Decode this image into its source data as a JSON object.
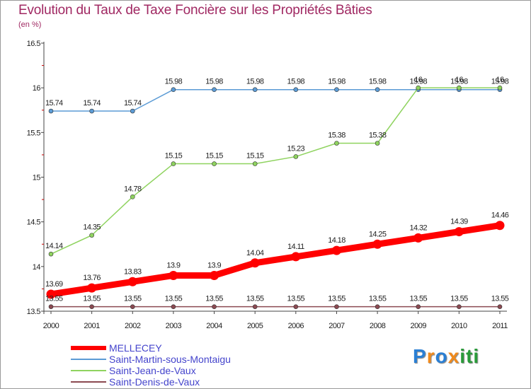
{
  "header": {
    "title": "Evolution du Taux de Taxe Foncière sur les Propriétés Bâties",
    "subtitle": "(en %)"
  },
  "logo": {
    "letters": [
      "P",
      "r",
      "o",
      "x",
      "i",
      "t",
      "i"
    ],
    "colors": [
      "#2a7fd4",
      "#f08a1c",
      "#2a7fd4",
      "#f08a1c",
      "#2a9a3a",
      "#2a9a3a",
      "#2a9a3a"
    ]
  },
  "chart_data": {
    "type": "line",
    "title": "Evolution du Taux de Taxe Foncière sur les Propriétés Bâties",
    "ylabel": "(en %)",
    "xlabel": "",
    "x": [
      "2000",
      "2001",
      "2002",
      "2003",
      "2004",
      "2005",
      "2006",
      "2007",
      "2008",
      "2009",
      "2010",
      "2011"
    ],
    "ylim": [
      13.5,
      16.5
    ],
    "yticks": [
      "13.5",
      "14",
      "14.5",
      "15",
      "15.5",
      "16",
      "16.5"
    ],
    "grid": false,
    "legend_position": "bottom-left",
    "series": [
      {
        "name": "MELLECEY",
        "color": "#ff0000",
        "values": [
          13.69,
          13.76,
          13.83,
          13.9,
          13.9,
          14.04,
          14.11,
          14.18,
          14.25,
          14.32,
          14.39,
          14.46
        ],
        "labels": [
          "13.69",
          "13.76",
          "13.83",
          "13.9",
          "13.9",
          "14.04",
          "14.11",
          "14.18",
          "14.25",
          "14.32",
          "14.39",
          "14.46"
        ],
        "emphasis": true
      },
      {
        "name": "Saint-Martin-sous-Montaigu",
        "color": "#5b9bd5",
        "values": [
          15.74,
          15.74,
          15.74,
          15.98,
          15.98,
          15.98,
          15.98,
          15.98,
          15.98,
          15.98,
          15.98,
          15.98
        ],
        "labels": [
          "15.74",
          "15.74",
          "15.74",
          "15.98",
          "15.98",
          "15.98",
          "15.98",
          "15.98",
          "15.98",
          "15.98",
          "15.98",
          "15.98"
        ]
      },
      {
        "name": "Saint-Jean-de-Vaux",
        "color": "#8fd35f",
        "values": [
          14.14,
          14.35,
          14.78,
          15.15,
          15.15,
          15.15,
          15.23,
          15.38,
          15.38,
          16,
          16,
          16
        ],
        "labels": [
          "14.14",
          "14.35",
          "14.78",
          "15.15",
          "15.15",
          "15.15",
          "15.23",
          "15.38",
          "15.38",
          "16",
          "16",
          "16"
        ]
      },
      {
        "name": "Saint-Denis-de-Vaux",
        "color": "#8b4a52",
        "values": [
          13.55,
          13.55,
          13.55,
          13.55,
          13.55,
          13.55,
          13.55,
          13.55,
          13.55,
          13.55,
          13.55,
          13.55
        ],
        "labels": [
          "13.55",
          "13.55",
          "13.55",
          "13.55",
          "13.55",
          "13.55",
          "13.55",
          "13.55",
          "13.55",
          "13.55",
          "13.55",
          "13.55"
        ]
      }
    ]
  }
}
